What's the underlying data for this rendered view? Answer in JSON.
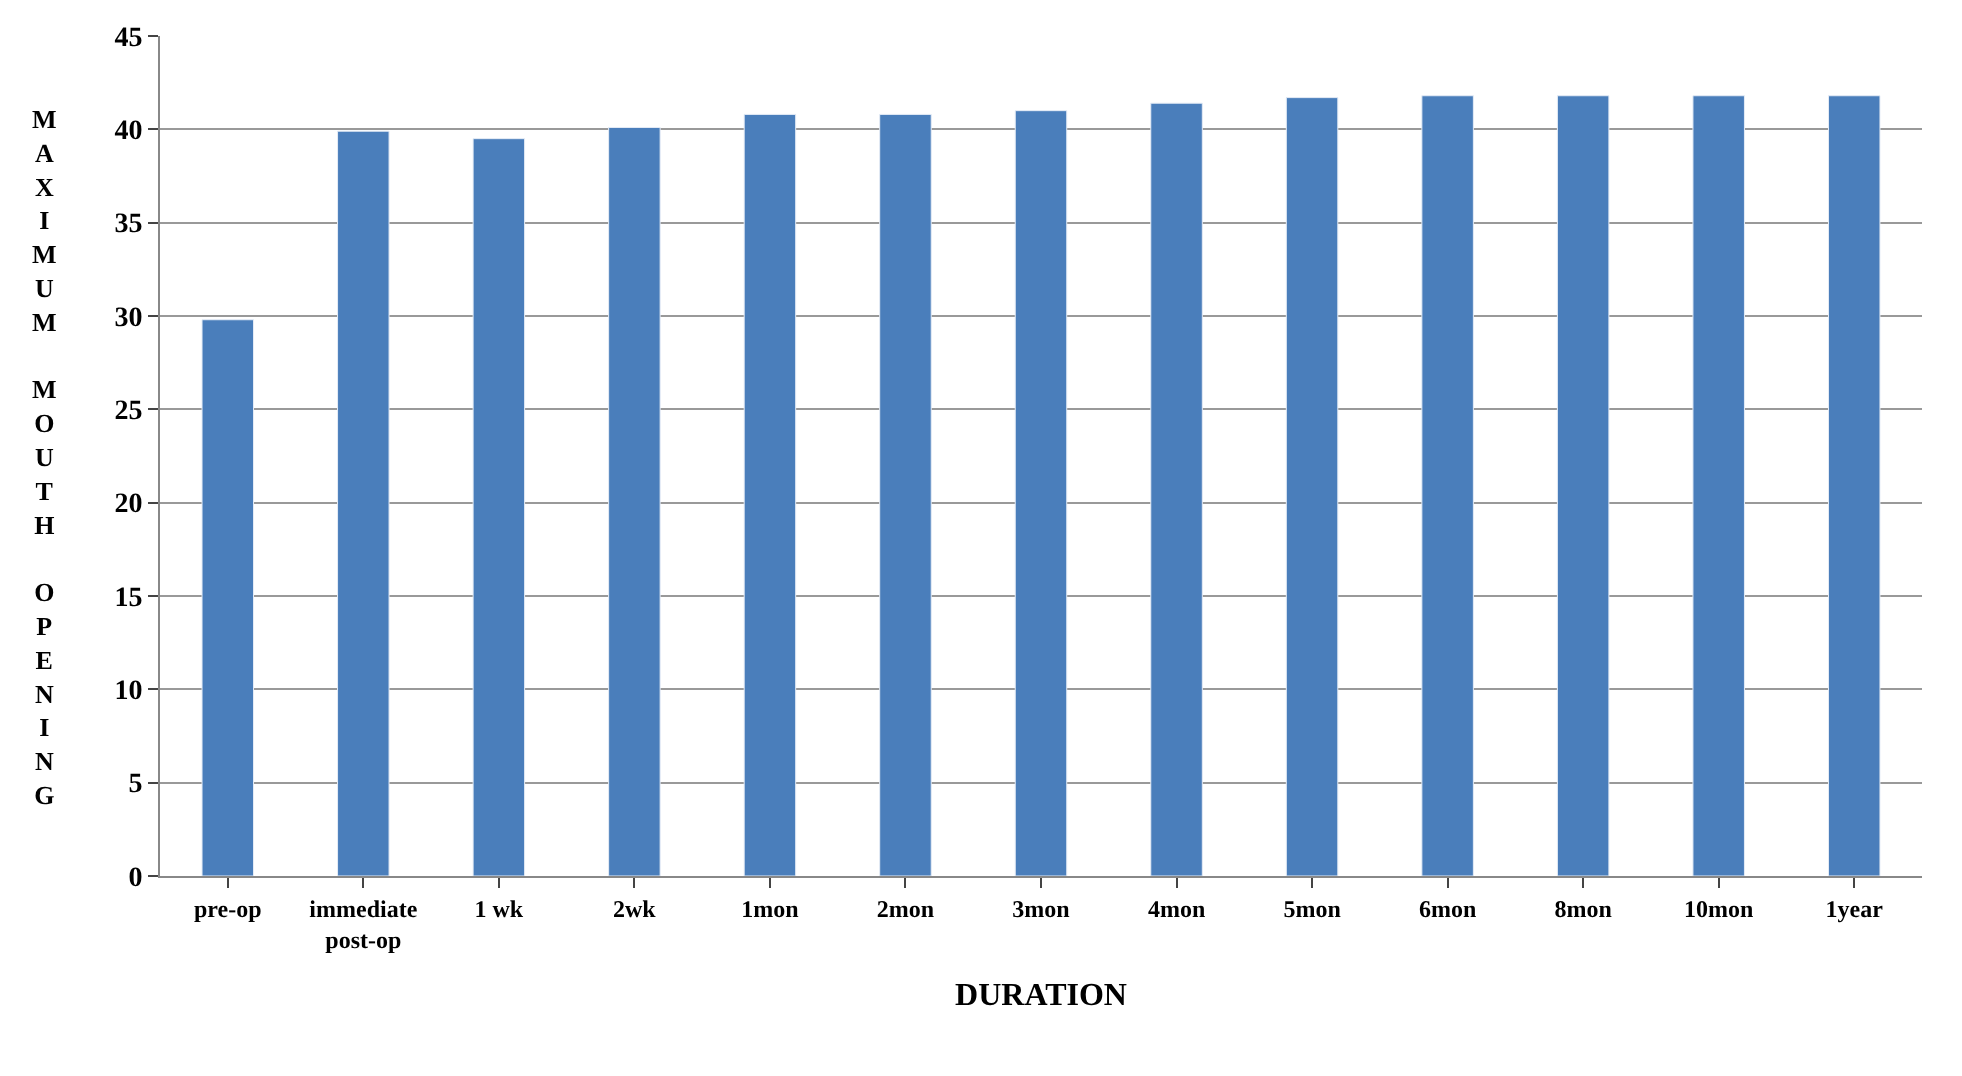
{
  "chart_data": {
    "type": "bar",
    "xlabel": "DURATION",
    "ylabel": "MAXIMUM MOUTH OPENING",
    "categories": [
      "pre-op",
      "immediate\npost-op",
      "1 wk",
      "2wk",
      "1mon",
      "2mon",
      "3mon",
      "4mon",
      "5mon",
      "6mon",
      "8mon",
      "10mon",
      "1year"
    ],
    "values": [
      29.8,
      39.9,
      39.5,
      40.1,
      40.8,
      40.8,
      41.0,
      41.4,
      41.7,
      41.8,
      41.8,
      41.8,
      41.8
    ],
    "color": "#4a7ebb",
    "ylim": [
      0,
      45
    ],
    "yticks": [
      0,
      5,
      10,
      15,
      20,
      25,
      30,
      35,
      40,
      45
    ],
    "grid": "y"
  }
}
